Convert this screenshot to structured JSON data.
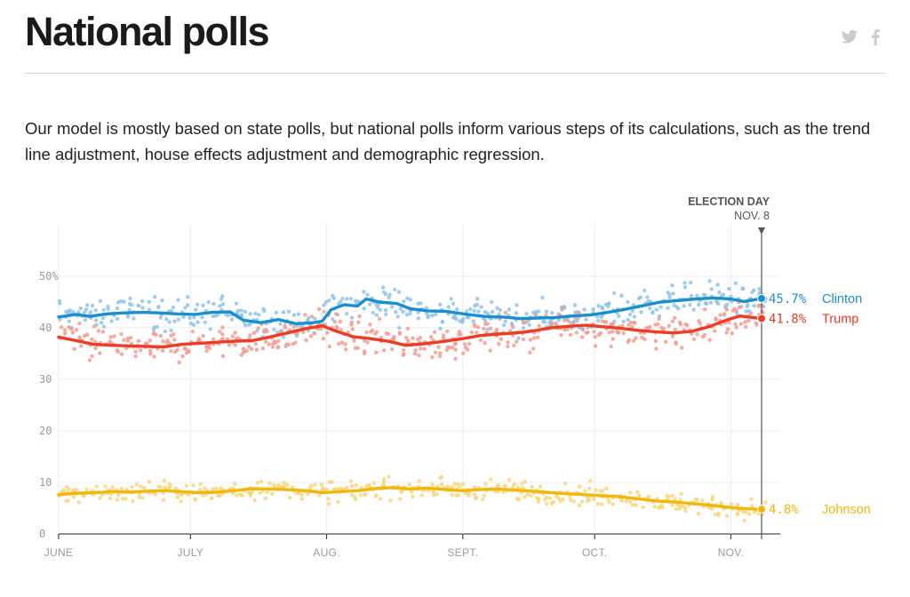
{
  "header": {
    "title": "National polls",
    "share": [
      {
        "name": "twitter-icon",
        "color": "#cccccc"
      },
      {
        "name": "facebook-icon",
        "color": "#cccccc"
      }
    ]
  },
  "intro": "Our model is mostly based on state polls, but national polls inform various steps of its calculations, such as the trend line adjustment, house effects adjustment and demographic regression.",
  "chart_data": {
    "type": "line",
    "title": "",
    "xlabel": "",
    "ylabel": "",
    "ylim": [
      0,
      60
    ],
    "grid": true,
    "x_range": [
      "2016-06-01",
      "2016-11-08"
    ],
    "y_ticks": [
      {
        "value": 0,
        "label": "0"
      },
      {
        "value": 10,
        "label": "10"
      },
      {
        "value": 20,
        "label": "20"
      },
      {
        "value": 30,
        "label": "30"
      },
      {
        "value": 40,
        "label": "40"
      },
      {
        "value": 50,
        "label": "50%"
      }
    ],
    "x_ticks": [
      {
        "date": "2016-06-01",
        "label": "JUNE"
      },
      {
        "date": "2016-07-01",
        "label": "JULY"
      },
      {
        "date": "2016-08-01",
        "label": "AUG."
      },
      {
        "date": "2016-09-01",
        "label": "SEPT."
      },
      {
        "date": "2016-10-01",
        "label": "OCT."
      },
      {
        "date": "2016-11-01",
        "label": "NOV."
      }
    ],
    "event": {
      "date": "2016-11-08",
      "title": "ELECTION DAY",
      "date_label": "NOV. 8"
    },
    "series": [
      {
        "name": "Clinton",
        "color": "#1a8fd0",
        "dot_color": "#8fc4e8",
        "end_value": 45.7,
        "end_label": "45.7%",
        "trend": [
          [
            "2016-06-01",
            42.1
          ],
          [
            "2016-06-05",
            42.6
          ],
          [
            "2016-06-08",
            42.2
          ],
          [
            "2016-06-12",
            42.7
          ],
          [
            "2016-06-16",
            42.9
          ],
          [
            "2016-06-20",
            43.0
          ],
          [
            "2016-06-24",
            42.9
          ],
          [
            "2016-06-28",
            42.7
          ],
          [
            "2016-07-02",
            42.6
          ],
          [
            "2016-07-06",
            43.0
          ],
          [
            "2016-07-10",
            43.1
          ],
          [
            "2016-07-13",
            41.5
          ],
          [
            "2016-07-17",
            41.0
          ],
          [
            "2016-07-21",
            41.6
          ],
          [
            "2016-07-25",
            40.8
          ],
          [
            "2016-07-29",
            41.0
          ],
          [
            "2016-07-31",
            41.3
          ],
          [
            "2016-08-02",
            43.5
          ],
          [
            "2016-08-05",
            44.5
          ],
          [
            "2016-08-08",
            44.2
          ],
          [
            "2016-08-10",
            45.6
          ],
          [
            "2016-08-13",
            45.0
          ],
          [
            "2016-08-17",
            44.7
          ],
          [
            "2016-08-20",
            43.7
          ],
          [
            "2016-08-24",
            43.3
          ],
          [
            "2016-08-28",
            43.2
          ],
          [
            "2016-09-02",
            42.6
          ],
          [
            "2016-09-06",
            42.2
          ],
          [
            "2016-09-10",
            42.1
          ],
          [
            "2016-09-14",
            41.8
          ],
          [
            "2016-09-18",
            41.9
          ],
          [
            "2016-09-22",
            42.0
          ],
          [
            "2016-09-26",
            42.3
          ],
          [
            "2016-09-30",
            42.5
          ],
          [
            "2016-10-04",
            43.0
          ],
          [
            "2016-10-08",
            43.6
          ],
          [
            "2016-10-12",
            44.3
          ],
          [
            "2016-10-16",
            45.0
          ],
          [
            "2016-10-20",
            45.3
          ],
          [
            "2016-10-24",
            45.6
          ],
          [
            "2016-10-28",
            45.8
          ],
          [
            "2016-11-01",
            45.6
          ],
          [
            "2016-11-04",
            45.1
          ],
          [
            "2016-11-08",
            45.7
          ]
        ]
      },
      {
        "name": "Trump",
        "color": "#ed3b24",
        "dot_color": "#f29c8f",
        "end_value": 41.8,
        "end_label": "41.8%",
        "trend": [
          [
            "2016-06-01",
            38.2
          ],
          [
            "2016-06-05",
            37.5
          ],
          [
            "2016-06-09",
            36.8
          ],
          [
            "2016-06-13",
            36.6
          ],
          [
            "2016-06-17",
            36.5
          ],
          [
            "2016-06-21",
            36.4
          ],
          [
            "2016-06-25",
            36.3
          ],
          [
            "2016-06-29",
            36.8
          ],
          [
            "2016-07-03",
            37.0
          ],
          [
            "2016-07-07",
            37.2
          ],
          [
            "2016-07-11",
            37.4
          ],
          [
            "2016-07-15",
            37.5
          ],
          [
            "2016-07-19",
            38.2
          ],
          [
            "2016-07-23",
            39.0
          ],
          [
            "2016-07-27",
            39.8
          ],
          [
            "2016-07-31",
            40.4
          ],
          [
            "2016-08-03",
            39.4
          ],
          [
            "2016-08-07",
            38.3
          ],
          [
            "2016-08-11",
            37.9
          ],
          [
            "2016-08-15",
            37.4
          ],
          [
            "2016-08-19",
            36.6
          ],
          [
            "2016-08-23",
            36.9
          ],
          [
            "2016-08-27",
            37.3
          ],
          [
            "2016-09-01",
            37.9
          ],
          [
            "2016-09-05",
            38.5
          ],
          [
            "2016-09-09",
            38.8
          ],
          [
            "2016-09-13",
            39.0
          ],
          [
            "2016-09-17",
            39.4
          ],
          [
            "2016-09-21",
            40.0
          ],
          [
            "2016-09-25",
            40.3
          ],
          [
            "2016-09-29",
            40.5
          ],
          [
            "2016-10-03",
            40.2
          ],
          [
            "2016-10-07",
            39.9
          ],
          [
            "2016-10-11",
            39.5
          ],
          [
            "2016-10-15",
            39.2
          ],
          [
            "2016-10-19",
            39.0
          ],
          [
            "2016-10-23",
            39.3
          ],
          [
            "2016-10-27",
            40.2
          ],
          [
            "2016-10-31",
            41.5
          ],
          [
            "2016-11-03",
            42.3
          ],
          [
            "2016-11-06",
            42.0
          ],
          [
            "2016-11-08",
            41.8
          ]
        ]
      },
      {
        "name": "Johnson",
        "color": "#f3b60b",
        "dot_color": "#f8d77b",
        "end_value": 4.8,
        "end_label": "4.8%",
        "trend": [
          [
            "2016-06-01",
            7.6
          ],
          [
            "2016-06-05",
            7.9
          ],
          [
            "2016-06-09",
            8.0
          ],
          [
            "2016-06-13",
            8.2
          ],
          [
            "2016-06-17",
            8.1
          ],
          [
            "2016-06-21",
            8.3
          ],
          [
            "2016-06-25",
            8.4
          ],
          [
            "2016-06-29",
            8.2
          ],
          [
            "2016-07-03",
            8.0
          ],
          [
            "2016-07-07",
            8.1
          ],
          [
            "2016-07-11",
            8.4
          ],
          [
            "2016-07-15",
            8.8
          ],
          [
            "2016-07-19",
            8.7
          ],
          [
            "2016-07-23",
            8.6
          ],
          [
            "2016-07-27",
            8.4
          ],
          [
            "2016-07-31",
            8.0
          ],
          [
            "2016-08-04",
            8.2
          ],
          [
            "2016-08-08",
            8.4
          ],
          [
            "2016-08-12",
            8.8
          ],
          [
            "2016-08-16",
            9.0
          ],
          [
            "2016-08-20",
            8.7
          ],
          [
            "2016-08-24",
            8.9
          ],
          [
            "2016-08-28",
            8.6
          ],
          [
            "2016-09-01",
            8.4
          ],
          [
            "2016-09-05",
            8.6
          ],
          [
            "2016-09-09",
            8.7
          ],
          [
            "2016-09-13",
            8.5
          ],
          [
            "2016-09-17",
            8.3
          ],
          [
            "2016-09-21",
            8.0
          ],
          [
            "2016-09-25",
            7.8
          ],
          [
            "2016-09-29",
            7.6
          ],
          [
            "2016-10-03",
            7.4
          ],
          [
            "2016-10-07",
            7.2
          ],
          [
            "2016-10-11",
            6.8
          ],
          [
            "2016-10-15",
            6.4
          ],
          [
            "2016-10-19",
            6.2
          ],
          [
            "2016-10-23",
            5.9
          ],
          [
            "2016-10-27",
            5.6
          ],
          [
            "2016-10-31",
            5.2
          ],
          [
            "2016-11-04",
            4.9
          ],
          [
            "2016-11-08",
            4.8
          ]
        ]
      }
    ]
  }
}
